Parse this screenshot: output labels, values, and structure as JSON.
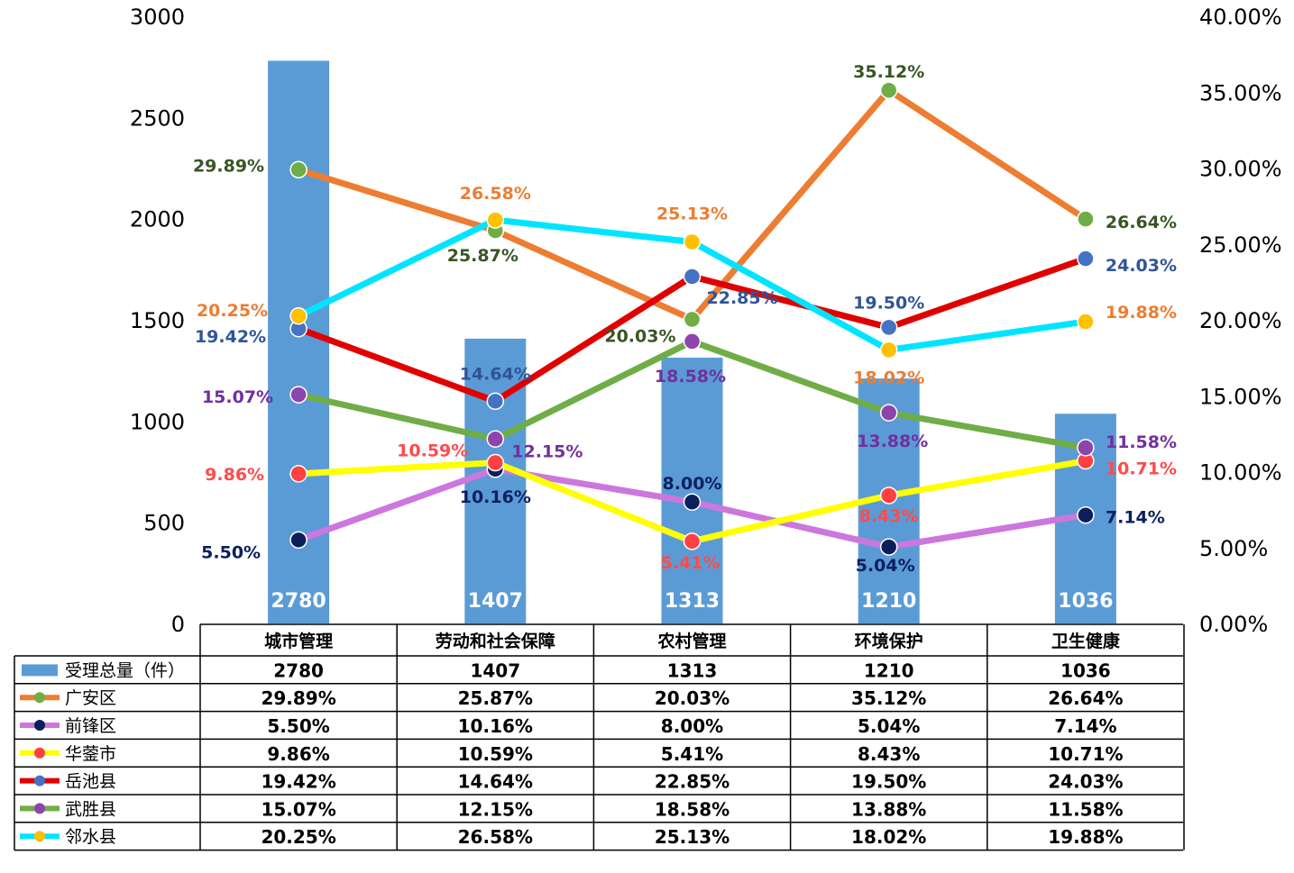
{
  "chart_data": {
    "type": "bar",
    "categories": [
      "城市管理",
      "劳动和社会保障",
      "农村管理",
      "环境保护",
      "卫生健康"
    ],
    "bar_series": {
      "name": "受理总量（件）",
      "values": [
        2780,
        1407,
        1313,
        1210,
        1036
      ],
      "color": "#5b9bd5"
    },
    "line_series": [
      {
        "name": "广安区",
        "values": [
          29.89,
          25.87,
          20.03,
          35.12,
          26.64
        ],
        "line_color": "#ed7d31",
        "marker_color": "#70ad47",
        "label_color": "#375623",
        "labels": [
          "29.89%",
          "25.87%",
          "20.03%",
          "35.12%",
          "26.64%"
        ]
      },
      {
        "name": "前锋区",
        "values": [
          5.5,
          10.16,
          8.0,
          5.04,
          7.14
        ],
        "line_color": "#cc77dd",
        "marker_color": "#0b1f5c",
        "label_color": "#0b2060",
        "labels": [
          "5.50%",
          "10.16%",
          "8.00%",
          "5.04%",
          "7.14%"
        ]
      },
      {
        "name": "华蓥市",
        "values": [
          9.86,
          10.59,
          5.41,
          8.43,
          10.71
        ],
        "line_color": "#ffff00",
        "marker_color": "#ff4040",
        "label_color": "#ff4b4b",
        "labels": [
          "9.86%",
          "10.59%",
          "5.41%",
          "8.43%",
          "10.71%"
        ]
      },
      {
        "name": "岳池县",
        "values": [
          19.42,
          14.64,
          22.85,
          19.5,
          24.03
        ],
        "line_color": "#e00000",
        "marker_color": "#4472c4",
        "label_color": "#2f5597",
        "labels": [
          "19.42%",
          "14.64%",
          "22.85%",
          "19.50%",
          "24.03%"
        ]
      },
      {
        "name": "武胜县",
        "values": [
          15.07,
          12.15,
          18.58,
          13.88,
          11.58
        ],
        "line_color": "#70ad47",
        "marker_color": "#8e44ad",
        "label_color": "#7030a0",
        "labels": [
          "15.07%",
          "12.15%",
          "18.58%",
          "13.88%",
          "11.58%"
        ]
      },
      {
        "name": "邻水县",
        "values": [
          20.25,
          26.58,
          25.13,
          18.02,
          19.88
        ],
        "line_color": "#00e5ff",
        "marker_color": "#ffc000",
        "label_color": "#ed7d31",
        "labels": [
          "20.25%",
          "26.58%",
          "25.13%",
          "18.02%",
          "19.88%"
        ]
      }
    ],
    "y_left": {
      "ticks": [
        "0",
        "500",
        "1000",
        "1500",
        "2000",
        "2500",
        "3000"
      ],
      "range": [
        0,
        3000
      ]
    },
    "y_right": {
      "ticks": [
        "0.00%",
        "5.00%",
        "10.00%",
        "15.00%",
        "20.00%",
        "25.00%",
        "30.00%",
        "35.00%",
        "40.00%"
      ],
      "range": [
        0,
        40
      ]
    },
    "bar_labels": [
      "2780",
      "1407",
      "1313",
      "1210",
      "1036"
    ],
    "data_table": {
      "rows": [
        {
          "legend": "受理总量（件）",
          "cells": [
            "2780",
            "1407",
            "1313",
            "1210",
            "1036"
          ]
        },
        {
          "legend": "广安区",
          "cells": [
            "29.89%",
            "25.87%",
            "20.03%",
            "35.12%",
            "26.64%"
          ]
        },
        {
          "legend": "前锋区",
          "cells": [
            "5.50%",
            "10.16%",
            "8.00%",
            "5.04%",
            "7.14%"
          ]
        },
        {
          "legend": "华蓥市",
          "cells": [
            "9.86%",
            "10.59%",
            "5.41%",
            "8.43%",
            "10.71%"
          ]
        },
        {
          "legend": "岳池县",
          "cells": [
            "19.42%",
            "14.64%",
            "22.85%",
            "19.50%",
            "24.03%"
          ]
        },
        {
          "legend": "武胜县",
          "cells": [
            "15.07%",
            "12.15%",
            "18.58%",
            "13.88%",
            "11.58%"
          ]
        },
        {
          "legend": "邻水县",
          "cells": [
            "20.25%",
            "26.58%",
            "25.13%",
            "18.02%",
            "19.88%"
          ]
        }
      ]
    },
    "grid": false
  }
}
